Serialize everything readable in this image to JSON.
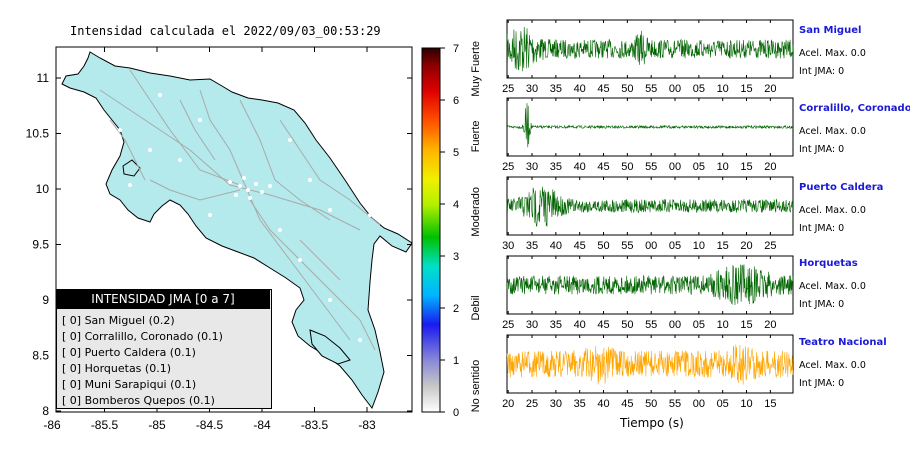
{
  "map": {
    "title": "Intensidad calculada el 2022/09/03_00:53:29",
    "x_ticks": [
      "-86",
      "-85.5",
      "-85",
      "-84.5",
      "-84",
      "-83.5",
      "-83"
    ],
    "y_ticks": [
      "11",
      "10.5",
      "10",
      "9.5",
      "9",
      "8.5",
      "8"
    ],
    "land_color": "#b4eaec"
  },
  "colorbar": {
    "ticks": [
      "0",
      "1",
      "2",
      "3",
      "4",
      "5",
      "6",
      "7"
    ],
    "class_labels": [
      "No sentido",
      "Debil",
      "Moderado",
      "Fuerte",
      "Muy Fuerte"
    ]
  },
  "legend": {
    "title": "INTENSIDAD JMA [0 a 7]",
    "rows": [
      "[ 0] San Miguel (0.2)",
      "[ 0] Corralillo, Coronado (0.1)",
      "[ 0] Puerto Caldera (0.1)",
      "[ 0] Horquetas (0.1)",
      "[ 0] Muni Sarapiqui (0.1)",
      "[ 0] Bomberos Quepos (0.1)"
    ]
  },
  "chart_data": [
    {
      "type": "line",
      "title": "San Miguel",
      "x_ticks": [
        "25",
        "30",
        "35",
        "40",
        "45",
        "50",
        "55",
        "00",
        "05",
        "10",
        "15",
        "20"
      ],
      "color": "#006400",
      "annotations": [
        "Acel. Max. 0.0",
        "Int JMA: 0"
      ]
    },
    {
      "type": "line",
      "title": "Corralillo, Coronado",
      "x_ticks": [
        "25",
        "30",
        "35",
        "40",
        "45",
        "50",
        "55",
        "00",
        "05",
        "10",
        "15",
        "20"
      ],
      "color": "#006400",
      "annotations": [
        "Acel. Max. 0.0",
        "Int JMA: 0"
      ]
    },
    {
      "type": "line",
      "title": "Puerto Caldera",
      "x_ticks": [
        "30",
        "35",
        "40",
        "45",
        "50",
        "55",
        "00",
        "05",
        "10",
        "15",
        "20",
        "25"
      ],
      "color": "#006400",
      "annotations": [
        "Acel. Max. 0.0",
        "Int JMA: 0"
      ]
    },
    {
      "type": "line",
      "title": "Horquetas",
      "x_ticks": [
        "25",
        "30",
        "35",
        "40",
        "45",
        "50",
        "55",
        "00",
        "05",
        "10",
        "15",
        "20"
      ],
      "color": "#006400",
      "annotations": [
        "Acel. Max. 0.0",
        "Int JMA: 0"
      ]
    },
    {
      "type": "line",
      "title": "Teatro Nacional",
      "x_ticks": [
        "20",
        "25",
        "30",
        "35",
        "40",
        "45",
        "50",
        "55",
        "00",
        "05",
        "10",
        "15"
      ],
      "color": "#ffa500",
      "annotations": [
        "Acel. Max. 0.0",
        "Int JMA: 0"
      ],
      "xlabel": "Tiempo (s)"
    }
  ]
}
